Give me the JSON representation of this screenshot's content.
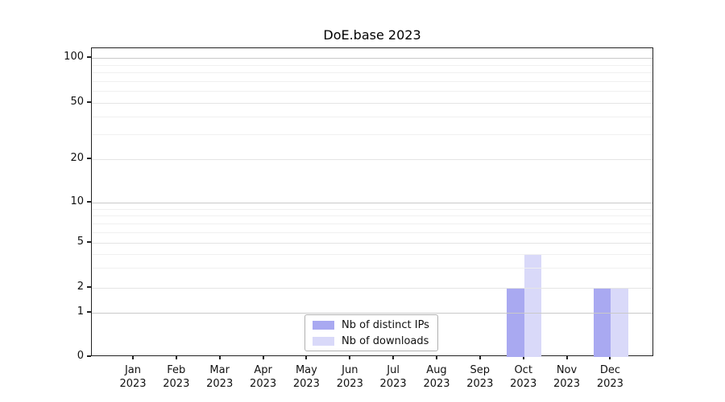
{
  "chart_data": {
    "type": "bar",
    "title": "DoE.base 2023",
    "categories": [
      "Jan 2023",
      "Feb 2023",
      "Mar 2023",
      "Apr 2023",
      "May 2023",
      "Jun 2023",
      "Jul 2023",
      "Aug 2023",
      "Sep 2023",
      "Oct 2023",
      "Nov 2023",
      "Dec 2023"
    ],
    "series": [
      {
        "name": "Nb of distinct IPs",
        "color": "#a9a9f1",
        "values": [
          0,
          0,
          0,
          0,
          0,
          0,
          0,
          0,
          0,
          2,
          0,
          2
        ]
      },
      {
        "name": "Nb of downloads",
        "color": "#d9d9f9",
        "values": [
          0,
          0,
          0,
          0,
          0,
          0,
          0,
          0,
          0,
          4,
          0,
          2
        ]
      }
    ],
    "xlabel": "",
    "ylabel": "",
    "y_ticks": [
      0,
      1,
      2,
      5,
      10,
      20,
      50,
      100
    ],
    "ylim": [
      0,
      116
    ],
    "yscale": "log above 1, linear segment 0-1",
    "grid": "horizontal major and minor gridlines, drawn above bars",
    "legend_position": "lower center inside plot",
    "bar_layout": "two series side by side, pair centered on month tick"
  },
  "colors": {
    "major_emphasis_grid": "#c9c9c9",
    "labeled_grid": "#e4e4e4",
    "minor_grid": "#f0f0f0",
    "spine": "#222222"
  }
}
